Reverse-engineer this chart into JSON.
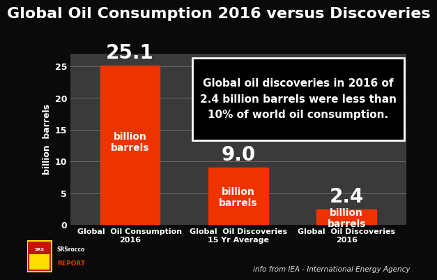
{
  "title": "Global Oil Consumption 2016 versus Discoveries",
  "categories": [
    "Global  Oil Consumption\n2016",
    "Global  Oil Discoveries\n15 Yr Average",
    "Global  Oil Discoveries\n2016"
  ],
  "values": [
    25.1,
    9.0,
    2.4
  ],
  "bar_labels": [
    "25.1",
    "9.0",
    "2.4"
  ],
  "bar_sublabels": [
    "billion\nbarrels",
    "billion\nbarrels",
    "billion\nbarrels"
  ],
  "bar_color": "#EE3300",
  "background_color": "#0a0a0a",
  "plot_bg_color": "#3a3a3a",
  "grid_color": "#6a6a6a",
  "text_color": "#FFFFFF",
  "ylabel": "billion  barrels",
  "ylim": [
    0,
    27
  ],
  "yticks": [
    0,
    5,
    10,
    15,
    20,
    25
  ],
  "annotation_text": "Global oil discoveries in 2016 of\n2.4 billion barrels were less than\n10% of world oil consumption.",
  "footer_text": "info from IEA - International Energy Agency",
  "title_fontsize": 16,
  "ylabel_fontsize": 9,
  "tick_fontsize": 9,
  "bar_label_fontsize": 20,
  "bar_sublabel_fontsize": 10,
  "xtick_fontsize": 8,
  "annot_fontsize": 11,
  "bar_width": 0.55
}
